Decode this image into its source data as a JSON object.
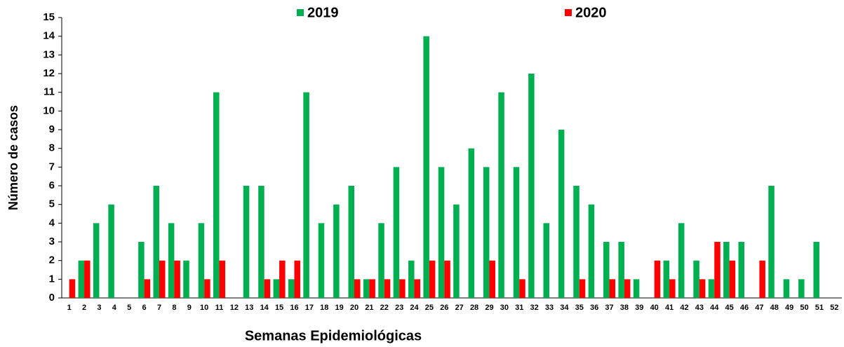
{
  "chart_data": {
    "type": "bar",
    "x_label": "Semanas Epidemiológicas",
    "y_label": "Número de casos",
    "categories": [
      "1",
      "2",
      "3",
      "4",
      "5",
      "6",
      "7",
      "8",
      "9",
      "10",
      "11",
      "12",
      "13",
      "14",
      "15",
      "16",
      "17",
      "18",
      "19",
      "20",
      "21",
      "22",
      "23",
      "24",
      "25",
      "26",
      "27",
      "28",
      "29",
      "30",
      "31",
      "32",
      "33",
      "34",
      "35",
      "36",
      "37",
      "38",
      "39",
      "40",
      "41",
      "42",
      "43",
      "44",
      "45",
      "46",
      "47",
      "48",
      "49",
      "50",
      "51",
      "52"
    ],
    "series": [
      {
        "name": "2019",
        "color": "#00b050",
        "values": [
          0,
          2,
          4,
          5,
          0,
          3,
          6,
          4,
          2,
          4,
          11,
          0,
          6,
          6,
          1,
          1,
          11,
          4,
          5,
          6,
          1,
          4,
          7,
          2,
          14,
          7,
          5,
          8,
          7,
          11,
          7,
          12,
          4,
          9,
          6,
          5,
          3,
          3,
          1,
          0,
          2,
          4,
          2,
          1,
          3,
          3,
          0,
          6,
          1,
          1,
          3,
          0
        ]
      },
      {
        "name": "2020",
        "color": "#ff0000",
        "values": [
          1,
          2,
          0,
          0,
          0,
          1,
          2,
          2,
          0,
          1,
          2,
          0,
          0,
          1,
          2,
          2,
          0,
          0,
          0,
          1,
          1,
          1,
          1,
          1,
          2,
          2,
          0,
          0,
          2,
          0,
          1,
          0,
          0,
          0,
          1,
          0,
          1,
          1,
          0,
          2,
          1,
          0,
          1,
          3,
          2,
          0,
          2,
          0,
          0,
          0,
          0,
          0
        ]
      }
    ],
    "ylim": [
      0,
      15
    ],
    "yticks": [
      0,
      1,
      2,
      3,
      4,
      5,
      6,
      7,
      8,
      9,
      10,
      11,
      12,
      13,
      14,
      15
    ],
    "grid": false,
    "legend": "top"
  }
}
